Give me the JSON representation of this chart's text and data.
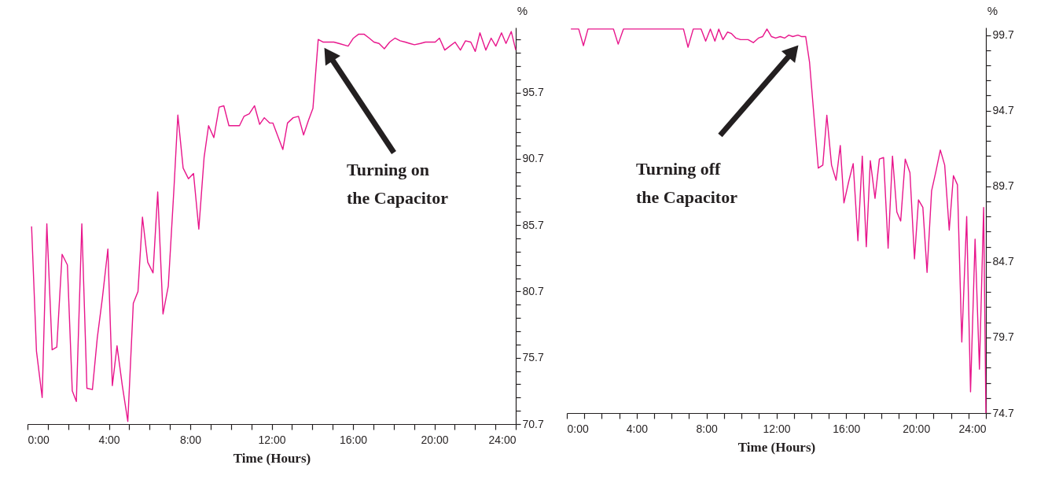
{
  "chart_data": [
    {
      "type": "line",
      "x": [
        0.2,
        0.44,
        0.72,
        0.95,
        1.21,
        1.44,
        1.7,
        1.96,
        2.2,
        2.4,
        2.67,
        2.92,
        3.19,
        3.43,
        3.68,
        3.95,
        4.17,
        4.4,
        4.66,
        4.93,
        5.2,
        5.43,
        5.65,
        5.91,
        6.17,
        6.4,
        6.66,
        6.92,
        7.2,
        7.39,
        7.65,
        7.91,
        8.16,
        8.42,
        8.68,
        8.9,
        9.16,
        9.42,
        9.65,
        9.9,
        10.42,
        10.64,
        10.9,
        11.16,
        11.41,
        11.64,
        11.9,
        12.06,
        12.55,
        12.78,
        13.06,
        13.32,
        13.57,
        13.81,
        14.03,
        14.29,
        14.54,
        15.06,
        15.31,
        15.76,
        16.02,
        16.28,
        16.54,
        16.8,
        17.03,
        17.28,
        17.54,
        17.8,
        18.06,
        18.32,
        18.57,
        18.79,
        19.02,
        19.31,
        19.56,
        19.82,
        20.04,
        20.25,
        20.51,
        20.76,
        21.02,
        21.28,
        21.53,
        21.79,
        22.01,
        22.24,
        22.53,
        22.79,
        23.02,
        23.3,
        23.52,
        23.78,
        24
      ],
      "series": [
        {
          "color": "#e8168c",
          "values": [
            85.6,
            76.2,
            72.7,
            85.8,
            76.3,
            76.5,
            83.5,
            82.7,
            73.2,
            72.4,
            85.8,
            73.4,
            73.3,
            77.2,
            80.2,
            83.9,
            73.6,
            76.6,
            73.6,
            70.9,
            79.8,
            80.7,
            86.3,
            82.9,
            82.1,
            88.2,
            79.0,
            81.1,
            88.5,
            94.0,
            90.0,
            89.2,
            89.6,
            85.4,
            90.8,
            93.2,
            92.3,
            94.6,
            94.7,
            93.2,
            93.2,
            93.9,
            94.1,
            94.7,
            93.3,
            93.8,
            93.4,
            93.4,
            91.4,
            93.4,
            93.8,
            93.9,
            92.5,
            93.6,
            94.5,
            99.7,
            99.5,
            99.5,
            99.4,
            99.2,
            99.8,
            100.1,
            100.1,
            99.8,
            99.5,
            99.4,
            99.0,
            99.5,
            99.8,
            99.6,
            99.5,
            99.4,
            99.3,
            99.4,
            99.5,
            99.5,
            99.5,
            99.8,
            98.9,
            99.2,
            99.5,
            98.9,
            99.6,
            99.5,
            98.8,
            100.2,
            98.9,
            99.8,
            99.2,
            100.2,
            99.4,
            100.3,
            98.9
          ]
        }
      ],
      "xlabel": "Time (Hours)",
      "ylabel": "%",
      "xlim": [
        0,
        24
      ],
      "ylim": [
        70.7,
        100.6
      ],
      "xticks": [
        {
          "value": 0,
          "label": "0:00"
        },
        {
          "value": 1,
          "label": null
        },
        {
          "value": 2,
          "label": null
        },
        {
          "value": 3,
          "label": null
        },
        {
          "value": 4,
          "label": "4:00"
        },
        {
          "value": 5,
          "label": null
        },
        {
          "value": 6,
          "label": null
        },
        {
          "value": 7,
          "label": null
        },
        {
          "value": 8,
          "label": "8:00"
        },
        {
          "value": 9,
          "label": null
        },
        {
          "value": 10,
          "label": null
        },
        {
          "value": 11,
          "label": null
        },
        {
          "value": 12,
          "label": "12:00"
        },
        {
          "value": 13,
          "label": null
        },
        {
          "value": 14,
          "label": null
        },
        {
          "value": 15,
          "label": null
        },
        {
          "value": 16,
          "label": "16:00"
        },
        {
          "value": 17,
          "label": null
        },
        {
          "value": 18,
          "label": null
        },
        {
          "value": 19,
          "label": null
        },
        {
          "value": 20,
          "label": "20:00"
        },
        {
          "value": 21,
          "label": null
        },
        {
          "value": 22,
          "label": null
        },
        {
          "value": 23,
          "label": null
        },
        {
          "value": 24,
          "label": "24:00"
        }
      ],
      "yticks": [
        70.7,
        {
          "value": 71.7,
          "label": null
        },
        {
          "value": 72.7,
          "label": null
        },
        {
          "value": 73.7,
          "label": null
        },
        {
          "value": 74.7,
          "label": null
        },
        75.7,
        {
          "value": 76.7,
          "label": null
        },
        {
          "value": 77.7,
          "label": null
        },
        {
          "value": 78.7,
          "label": null
        },
        {
          "value": 79.7,
          "label": null
        },
        80.7,
        {
          "value": 81.7,
          "label": null
        },
        {
          "value": 82.7,
          "label": null
        },
        {
          "value": 83.7,
          "label": null
        },
        {
          "value": 84.7,
          "label": null
        },
        85.7,
        {
          "value": 86.7,
          "label": null
        },
        {
          "value": 87.7,
          "label": null
        },
        {
          "value": 88.7,
          "label": null
        },
        {
          "value": 89.7,
          "label": null
        },
        90.7,
        {
          "value": 91.7,
          "label": null
        },
        {
          "value": 92.7,
          "label": null
        },
        {
          "value": 93.7,
          "label": null
        },
        {
          "value": 94.7,
          "label": null
        },
        95.7,
        {
          "value": 96.7,
          "label": null
        },
        {
          "value": 97.7,
          "label": null
        },
        {
          "value": 98.7,
          "label": null
        },
        {
          "value": 99.7,
          "label": null
        }
      ],
      "annotations": [
        "Turning on\nthe Capacitor"
      ]
    },
    {
      "type": "line",
      "x": [
        0.23,
        0.68,
        0.95,
        1.21,
        2.67,
        2.94,
        3.24,
        6.68,
        6.94,
        7.24,
        7.69,
        7.95,
        8.22,
        8.48,
        8.7,
        8.94,
        9.2,
        9.43,
        9.68,
        9.95,
        10.38,
        10.68,
        10.97,
        11.21,
        11.46,
        11.72,
        11.96,
        12.22,
        12.47,
        12.71,
        12.94,
        13.23,
        13.45,
        13.68,
        13.9,
        14.4,
        14.66,
        14.89,
        15.16,
        15.42,
        15.66,
        15.87,
        16.14,
        16.4,
        16.67,
        16.92,
        17.15,
        17.38,
        17.65,
        17.9,
        18.14,
        18.4,
        18.65,
        18.9,
        19.12,
        19.38,
        19.65,
        19.91,
        20.14,
        20.39,
        20.63,
        20.89,
        21.14,
        21.39,
        21.64,
        21.9,
        22.14,
        22.37,
        22.62,
        22.9,
        23.12,
        23.38,
        23.63,
        23.87,
        24
      ],
      "series": [
        {
          "color": "#e8168c",
          "values": [
            100.1,
            100.1,
            99.0,
            100.1,
            100.1,
            99.1,
            100.1,
            100.1,
            98.9,
            100.1,
            100.1,
            99.3,
            100.1,
            99.3,
            100.1,
            99.4,
            99.9,
            99.8,
            99.5,
            99.4,
            99.4,
            99.2,
            99.5,
            99.6,
            100.1,
            99.6,
            99.5,
            99.6,
            99.5,
            99.7,
            99.6,
            99.7,
            99.6,
            99.6,
            97.9,
            90.9,
            91.1,
            94.4,
            91.1,
            90.1,
            92.4,
            88.6,
            90.0,
            91.2,
            86.1,
            91.7,
            85.7,
            91.4,
            88.9,
            91.5,
            91.6,
            85.6,
            91.7,
            88.0,
            87.4,
            91.5,
            90.6,
            84.9,
            88.8,
            88.3,
            84.0,
            89.4,
            90.7,
            92.1,
            91.1,
            86.8,
            90.4,
            89.8,
            79.4,
            87.7,
            76.1,
            86.2,
            77.6,
            88.3,
            74.7
          ]
        }
      ],
      "xlabel": "Time (Hours)",
      "ylabel": "%",
      "xlim": [
        0,
        24
      ],
      "ylim": [
        74.7,
        100.2
      ],
      "xticks": [
        {
          "value": 0,
          "label": "0:00"
        },
        {
          "value": 1,
          "label": null
        },
        {
          "value": 2,
          "label": null
        },
        {
          "value": 3,
          "label": null
        },
        {
          "value": 4,
          "label": "4:00"
        },
        {
          "value": 5,
          "label": null
        },
        {
          "value": 6,
          "label": null
        },
        {
          "value": 7,
          "label": null
        },
        {
          "value": 8,
          "label": "8:00"
        },
        {
          "value": 9,
          "label": null
        },
        {
          "value": 10,
          "label": null
        },
        {
          "value": 11,
          "label": null
        },
        {
          "value": 12,
          "label": "12:00"
        },
        {
          "value": 13,
          "label": null
        },
        {
          "value": 14,
          "label": null
        },
        {
          "value": 15,
          "label": null
        },
        {
          "value": 16,
          "label": "16:00"
        },
        {
          "value": 17,
          "label": null
        },
        {
          "value": 18,
          "label": null
        },
        {
          "value": 19,
          "label": null
        },
        {
          "value": 20,
          "label": "20:00"
        },
        {
          "value": 21,
          "label": null
        },
        {
          "value": 22,
          "label": null
        },
        {
          "value": 23,
          "label": null
        },
        {
          "value": 24,
          "label": "24:00"
        }
      ],
      "yticks": [
        74.7,
        {
          "value": 75.7,
          "label": null
        },
        {
          "value": 76.7,
          "label": null
        },
        {
          "value": 77.7,
          "label": null
        },
        {
          "value": 78.7,
          "label": null
        },
        79.7,
        {
          "value": 80.7,
          "label": null
        },
        {
          "value": 81.7,
          "label": null
        },
        {
          "value": 82.7,
          "label": null
        },
        {
          "value": 83.7,
          "label": null
        },
        84.7,
        {
          "value": 85.7,
          "label": null
        },
        {
          "value": 86.7,
          "label": null
        },
        {
          "value": 87.7,
          "label": null
        },
        {
          "value": 88.7,
          "label": null
        },
        89.7,
        {
          "value": 90.7,
          "label": null
        },
        {
          "value": 91.7,
          "label": null
        },
        {
          "value": 92.7,
          "label": null
        },
        {
          "value": 93.7,
          "label": null
        },
        94.7,
        {
          "value": 95.7,
          "label": null
        },
        {
          "value": 96.7,
          "label": null
        },
        {
          "value": 97.7,
          "label": null
        },
        {
          "value": 98.7,
          "label": null
        },
        99.7
      ],
      "annotations": [
        "Turning off\nthe Capacitor"
      ]
    }
  ]
}
